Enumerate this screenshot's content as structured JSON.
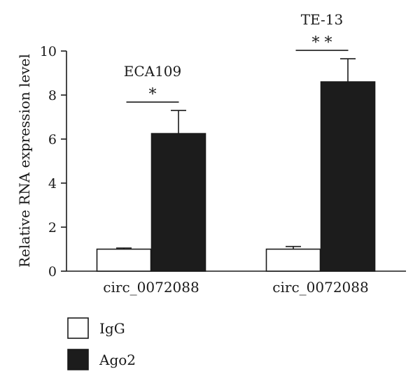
{
  "chart_data": {
    "type": "bar",
    "ylabel": "Relative RNA expression level",
    "ylim": [
      0,
      10
    ],
    "yticks": [
      0,
      2,
      4,
      6,
      8,
      10
    ],
    "series_names": [
      "IgG",
      "Ago2"
    ],
    "colors": {
      "IgG": "#ffffff",
      "Ago2": "#1c1c1c"
    },
    "legend_position": "bottom-left",
    "groups": [
      {
        "category": "circ_0072088",
        "label": "ECA109",
        "significance": "*",
        "values": [
          1.0,
          6.25
        ],
        "errors": [
          0.05,
          1.05
        ]
      },
      {
        "category": "circ_0072088",
        "label": "TE-13",
        "significance": "* *",
        "values": [
          1.0,
          8.6
        ],
        "errors": [
          0.12,
          1.05
        ]
      }
    ]
  }
}
